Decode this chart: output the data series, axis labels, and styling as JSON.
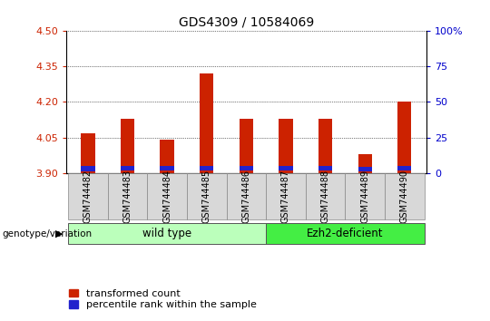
{
  "title": "GDS4309 / 10584069",
  "samples": [
    "GSM744482",
    "GSM744483",
    "GSM744484",
    "GSM744485",
    "GSM744486",
    "GSM744487",
    "GSM744488",
    "GSM744489",
    "GSM744490"
  ],
  "transformed_count": [
    4.07,
    4.13,
    4.04,
    4.32,
    4.13,
    4.13,
    4.13,
    3.98,
    4.2
  ],
  "percentile_bottom": [
    3.91,
    3.912,
    3.912,
    3.912,
    3.913,
    3.913,
    3.913,
    3.91,
    3.912
  ],
  "percentile_top": [
    3.93,
    3.932,
    3.932,
    3.932,
    3.93,
    3.93,
    3.93,
    3.927,
    3.93
  ],
  "ylim_left": [
    3.9,
    4.5
  ],
  "ylim_right": [
    0,
    100
  ],
  "yticks_left": [
    3.9,
    4.05,
    4.2,
    4.35,
    4.5
  ],
  "yticks_right": [
    0,
    25,
    50,
    75,
    100
  ],
  "bar_color": "#cc2200",
  "percentile_color": "#2222cc",
  "bar_width": 0.35,
  "grid_color": "#000000",
  "group1_label": "wild type",
  "group2_label": "Ezh2-deficient",
  "group1_indices": [
    0,
    1,
    2,
    3,
    4
  ],
  "group2_indices": [
    5,
    6,
    7,
    8
  ],
  "group1_color": "#bbffbb",
  "group2_color": "#44ee44",
  "genotype_label": "genotype/variation",
  "legend_red": "transformed count",
  "legend_blue": "percentile rank within the sample",
  "bg_color": "#ffffff",
  "plot_bg": "#ffffff",
  "tick_color_left": "#cc2200",
  "tick_color_right": "#0000cc",
  "xlabel_bg": "#cccccc",
  "xlabel_fontsize": 7.0,
  "title_fontsize": 10
}
